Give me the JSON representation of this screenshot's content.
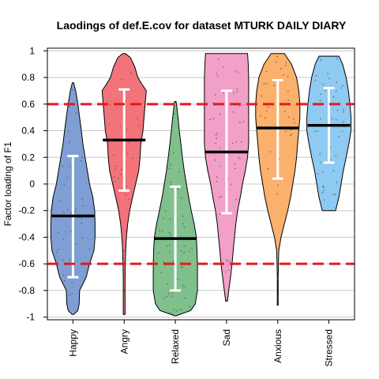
{
  "chart_data": {
    "type": "violin",
    "title": "Laodings of def.E.cov for dataset MTURK DAILY DIARY",
    "xlabel": "",
    "ylabel": "Factor loading of F1",
    "ylim": [
      -1.02,
      1.02
    ],
    "yticks": [
      -1,
      -0.8,
      -0.6,
      -0.4,
      -0.2,
      0,
      0.2,
      0.4,
      0.6,
      0.8,
      1
    ],
    "ytick_labels": [
      "-1",
      "-0.8",
      "-0.6",
      "-0.4",
      "-0.2",
      "0",
      "0.2",
      "0.4",
      "0.6",
      "0.8",
      "1"
    ],
    "grid": true,
    "reference_lines": [
      {
        "y": 0.6,
        "color": "#e31a1c",
        "style": "dashed"
      },
      {
        "y": -0.6,
        "color": "#e31a1c",
        "style": "dashed"
      }
    ],
    "categories": [
      "Happy",
      "Angry",
      "Relaxed",
      "Sad",
      "Anxious",
      "Stressed"
    ],
    "series": [
      {
        "color": "#7f9fd4",
        "min": -0.98,
        "max": 0.76,
        "mean": -0.24,
        "sd_low": -0.7,
        "sd_high": 0.21,
        "density": [
          [
            -0.98,
            0.04
          ],
          [
            -0.95,
            0.22
          ],
          [
            -0.9,
            0.28
          ],
          [
            -0.8,
            0.3
          ],
          [
            -0.7,
            0.6
          ],
          [
            -0.6,
            0.75
          ],
          [
            -0.5,
            0.95
          ],
          [
            -0.4,
            1.0
          ],
          [
            -0.3,
            1.0
          ],
          [
            -0.2,
            0.98
          ],
          [
            -0.1,
            0.9
          ],
          [
            0.0,
            0.75
          ],
          [
            0.1,
            0.65
          ],
          [
            0.2,
            0.55
          ],
          [
            0.3,
            0.45
          ],
          [
            0.4,
            0.38
          ],
          [
            0.5,
            0.3
          ],
          [
            0.6,
            0.22
          ],
          [
            0.7,
            0.12
          ],
          [
            0.76,
            0.03
          ]
        ]
      },
      {
        "color": "#f2737a",
        "min": -0.98,
        "max": 0.98,
        "mean": 0.33,
        "sd_low": -0.05,
        "sd_high": 0.71,
        "density": [
          [
            -0.98,
            0.04
          ],
          [
            -0.9,
            0.04
          ],
          [
            -0.7,
            0.04
          ],
          [
            -0.6,
            0.05
          ],
          [
            -0.5,
            0.07
          ],
          [
            -0.4,
            0.1
          ],
          [
            -0.3,
            0.16
          ],
          [
            -0.2,
            0.25
          ],
          [
            -0.1,
            0.38
          ],
          [
            0.0,
            0.52
          ],
          [
            0.1,
            0.66
          ],
          [
            0.2,
            0.72
          ],
          [
            0.3,
            0.75
          ],
          [
            0.4,
            0.85
          ],
          [
            0.5,
            0.9
          ],
          [
            0.6,
            0.95
          ],
          [
            0.7,
            1.0
          ],
          [
            0.75,
            0.8
          ],
          [
            0.8,
            0.62
          ],
          [
            0.88,
            0.48
          ],
          [
            0.95,
            0.28
          ],
          [
            0.98,
            0.05
          ]
        ]
      },
      {
        "color": "#7fc08c",
        "min": -0.99,
        "max": 0.62,
        "mean": -0.41,
        "sd_low": -0.8,
        "sd_high": -0.02,
        "density": [
          [
            -0.99,
            0.04
          ],
          [
            -0.95,
            0.7
          ],
          [
            -0.9,
            0.9
          ],
          [
            -0.8,
            1.0
          ],
          [
            -0.7,
            1.0
          ],
          [
            -0.6,
            1.0
          ],
          [
            -0.5,
            0.98
          ],
          [
            -0.4,
            0.95
          ],
          [
            -0.3,
            0.85
          ],
          [
            -0.2,
            0.72
          ],
          [
            -0.1,
            0.6
          ],
          [
            0.0,
            0.5
          ],
          [
            0.1,
            0.4
          ],
          [
            0.2,
            0.32
          ],
          [
            0.3,
            0.25
          ],
          [
            0.4,
            0.18
          ],
          [
            0.5,
            0.12
          ],
          [
            0.6,
            0.05
          ],
          [
            0.62,
            0.03
          ]
        ]
      },
      {
        "color": "#f2a0c8",
        "min": -0.88,
        "max": 0.98,
        "mean": 0.24,
        "sd_low": -0.22,
        "sd_high": 0.7,
        "density": [
          [
            -0.88,
            0.04
          ],
          [
            -0.8,
            0.1
          ],
          [
            -0.7,
            0.18
          ],
          [
            -0.6,
            0.25
          ],
          [
            -0.5,
            0.3
          ],
          [
            -0.4,
            0.36
          ],
          [
            -0.3,
            0.42
          ],
          [
            -0.2,
            0.5
          ],
          [
            -0.1,
            0.62
          ],
          [
            0.0,
            0.72
          ],
          [
            0.1,
            0.85
          ],
          [
            0.2,
            0.95
          ],
          [
            0.3,
            1.0
          ],
          [
            0.4,
            1.0
          ],
          [
            0.5,
            1.0
          ],
          [
            0.6,
            1.0
          ],
          [
            0.7,
            1.0
          ],
          [
            0.8,
            1.0
          ],
          [
            0.9,
            0.98
          ],
          [
            0.98,
            0.95
          ]
        ]
      },
      {
        "color": "#fbb06c",
        "min": -0.91,
        "max": 0.98,
        "mean": 0.42,
        "sd_low": 0.04,
        "sd_high": 0.78,
        "density": [
          [
            -0.91,
            0.02
          ],
          [
            -0.8,
            0.02
          ],
          [
            -0.7,
            0.02
          ],
          [
            -0.6,
            0.03
          ],
          [
            -0.5,
            0.05
          ],
          [
            -0.4,
            0.15
          ],
          [
            -0.3,
            0.3
          ],
          [
            -0.2,
            0.45
          ],
          [
            -0.1,
            0.58
          ],
          [
            0.0,
            0.68
          ],
          [
            0.1,
            0.78
          ],
          [
            0.2,
            0.85
          ],
          [
            0.3,
            0.9
          ],
          [
            0.4,
            0.95
          ],
          [
            0.5,
            1.0
          ],
          [
            0.6,
            1.0
          ],
          [
            0.7,
            0.95
          ],
          [
            0.8,
            0.85
          ],
          [
            0.9,
            0.62
          ],
          [
            0.98,
            0.3
          ]
        ]
      },
      {
        "color": "#8ecaf2",
        "min": -0.2,
        "max": 0.96,
        "mean": 0.44,
        "sd_low": 0.16,
        "sd_high": 0.72,
        "density": [
          [
            -0.2,
            0.3
          ],
          [
            -0.1,
            0.45
          ],
          [
            0.0,
            0.55
          ],
          [
            0.1,
            0.65
          ],
          [
            0.2,
            0.78
          ],
          [
            0.3,
            0.9
          ],
          [
            0.4,
            1.0
          ],
          [
            0.5,
            1.0
          ],
          [
            0.6,
            0.95
          ],
          [
            0.7,
            0.88
          ],
          [
            0.8,
            0.78
          ],
          [
            0.9,
            0.62
          ],
          [
            0.96,
            0.45
          ]
        ]
      }
    ]
  }
}
